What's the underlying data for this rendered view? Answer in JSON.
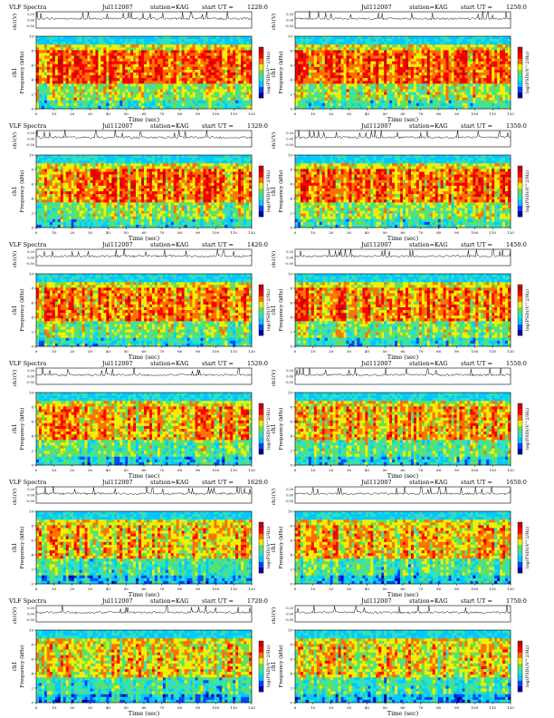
{
  "header": {
    "title": "VLF Spectra",
    "station_label": "station=KAG",
    "start_label": "start UT ="
  },
  "labels": {
    "trace_axis": "ch1(V)",
    "spec_axis_ch": "ch1",
    "spec_axis_freq": "Frequency (kHz)",
    "time_axis": "Time (sec)",
    "colorbar": "log(PSD)(V^2/Hz)"
  },
  "axes": {
    "time_ticks": [
      "0",
      "10",
      "20",
      "30",
      "40",
      "50",
      "60",
      "70",
      "80",
      "90",
      "100",
      "110",
      "120"
    ],
    "freq_ticks": [
      "0",
      "2",
      "4",
      "6",
      "8",
      "10"
    ],
    "trace_ticks": [
      "0.20",
      "0.00",
      "-0.50"
    ]
  },
  "colors": {
    "scale": [
      "#0000a0",
      "#0044ff",
      "#00c8ff",
      "#30e0c0",
      "#60e060",
      "#f0f000",
      "#ff7000",
      "#ff0000",
      "#c80000"
    ],
    "trace": "#000000"
  },
  "chart_data": [
    {
      "type": "heatmap",
      "date": "Jul112007",
      "start_ut": "1220:0",
      "xlim": [
        0,
        120
      ],
      "ylim": [
        0,
        10
      ]
    },
    {
      "type": "heatmap",
      "date": "Jul112007",
      "start_ut": "1250:0",
      "xlim": [
        0,
        120
      ],
      "ylim": [
        0,
        10
      ]
    },
    {
      "type": "heatmap",
      "date": "Jul112007",
      "start_ut": "1320:0",
      "xlim": [
        0,
        120
      ],
      "ylim": [
        0,
        10
      ]
    },
    {
      "type": "heatmap",
      "date": "Jul112007",
      "start_ut": "1350:0",
      "xlim": [
        0,
        120
      ],
      "ylim": [
        0,
        10
      ]
    },
    {
      "type": "heatmap",
      "date": "Jul112007",
      "start_ut": "1420:0",
      "xlim": [
        0,
        120
      ],
      "ylim": [
        0,
        10
      ]
    },
    {
      "type": "heatmap",
      "date": "Jul112007",
      "start_ut": "1450:0",
      "xlim": [
        0,
        120
      ],
      "ylim": [
        0,
        10
      ]
    },
    {
      "type": "heatmap",
      "date": "Jul112007",
      "start_ut": "1520:0",
      "xlim": [
        0,
        120
      ],
      "ylim": [
        0,
        10
      ]
    },
    {
      "type": "heatmap",
      "date": "Jul112007",
      "start_ut": "1550:0",
      "xlim": [
        0,
        120
      ],
      "ylim": [
        0,
        10
      ]
    },
    {
      "type": "heatmap",
      "date": "Jul112007",
      "start_ut": "1620:0",
      "xlim": [
        0,
        120
      ],
      "ylim": [
        0,
        10
      ]
    },
    {
      "type": "heatmap",
      "date": "Jul112007",
      "start_ut": "1650:0",
      "xlim": [
        0,
        120
      ],
      "ylim": [
        0,
        10
      ]
    },
    {
      "type": "heatmap",
      "date": "Jul112007",
      "start_ut": "1720:0",
      "xlim": [
        0,
        120
      ],
      "ylim": [
        0,
        10
      ]
    },
    {
      "type": "heatmap",
      "date": "Jul112007",
      "start_ut": "1750:0",
      "xlim": [
        0,
        120
      ],
      "ylim": [
        0,
        10
      ]
    }
  ]
}
